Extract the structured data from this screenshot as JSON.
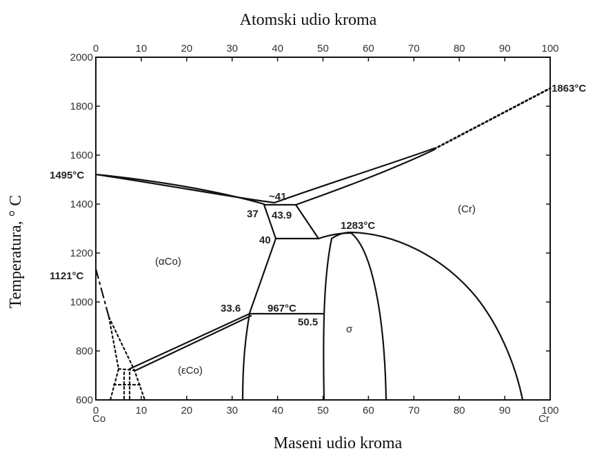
{
  "chart_data": {
    "type": "phase-diagram",
    "title_top": "Atomski udio kroma",
    "xlabel": "Maseni udio kroma",
    "ylabel": "Temperatura, ° C",
    "xlim": [
      0,
      100
    ],
    "ylim": [
      600,
      2000
    ],
    "x_ticks_bottom": [
      "0",
      "10",
      "20",
      "30",
      "40",
      "50",
      "60",
      "70",
      "80",
      "90",
      "100"
    ],
    "x_ticks_top": [
      "0",
      "10",
      "20",
      "30",
      "40",
      "50",
      "60",
      "70",
      "80",
      "90",
      "100"
    ],
    "y_ticks": [
      "600",
      "800",
      "1000",
      "1200",
      "1400",
      "1600",
      "1800",
      "2000"
    ],
    "x_end_labels": [
      "Co",
      "Cr"
    ],
    "points": {
      "co_melting": "1495°C",
      "co_transition": "1121°C",
      "cr_melting": "1863°C",
      "eutectic_comp": "~41",
      "left_eutectic": "37",
      "right_eutectic": "43.9",
      "sigma_left": "40",
      "sigma_max": "1283°C",
      "eutectoid_left": "33.6",
      "eutectoid_temp": "967°C",
      "eutectoid_right": "50.5"
    },
    "regions": {
      "alpha_co": "(αCo)",
      "epsilon_co": "(εCo)",
      "sigma": "σ",
      "cr": "(Cr)"
    }
  }
}
